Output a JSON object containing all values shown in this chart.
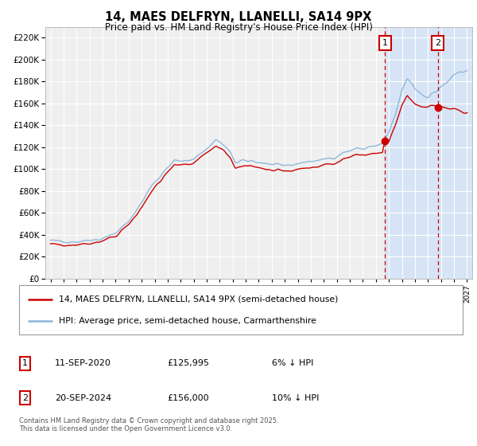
{
  "title": "14, MAES DELFRYN, LLANELLI, SA14 9PX",
  "subtitle": "Price paid vs. HM Land Registry's House Price Index (HPI)",
  "ylim": [
    0,
    230000
  ],
  "yticks": [
    0,
    20000,
    40000,
    60000,
    80000,
    100000,
    120000,
    140000,
    160000,
    180000,
    200000,
    220000
  ],
  "xlim_start": 1994.6,
  "xlim_end": 2027.4,
  "hpi_color": "#8ab4d8",
  "price_color": "#cc0000",
  "plot_bg_color": "#efefef",
  "shade_color": "#d6e4f5",
  "grid_color": "#ffffff",
  "marker1_date": 2020.7,
  "marker2_date": 2024.75,
  "marker1_value": 125995,
  "marker2_value": 156000,
  "marker1_label": "1",
  "marker2_label": "2",
  "legend_line1": "14, MAES DELFRYN, LLANELLI, SA14 9PX (semi-detached house)",
  "legend_line2": "HPI: Average price, semi-detached house, Carmarthenshire",
  "table_row1": [
    "1",
    "11-SEP-2020",
    "£125,995",
    "6% ↓ HPI"
  ],
  "table_row2": [
    "2",
    "20-SEP-2024",
    "£156,000",
    "10% ↓ HPI"
  ],
  "footer": "Contains HM Land Registry data © Crown copyright and database right 2025.\nThis data is licensed under the Open Government Licence v3.0.",
  "hpi_anchors": [
    [
      1995.0,
      34000
    ],
    [
      1996.0,
      34500
    ],
    [
      1997.0,
      34000
    ],
    [
      1998.0,
      35000
    ],
    [
      1999.0,
      37000
    ],
    [
      2000.0,
      42000
    ],
    [
      2001.0,
      52000
    ],
    [
      2002.0,
      70000
    ],
    [
      2003.0,
      89000
    ],
    [
      2004.0,
      101000
    ],
    [
      2004.5,
      108000
    ],
    [
      2005.0,
      107000
    ],
    [
      2005.5,
      108000
    ],
    [
      2006.0,
      110000
    ],
    [
      2007.0,
      119000
    ],
    [
      2007.7,
      127000
    ],
    [
      2008.3,
      122000
    ],
    [
      2008.8,
      115000
    ],
    [
      2009.2,
      106000
    ],
    [
      2009.8,
      107000
    ],
    [
      2010.3,
      108000
    ],
    [
      2010.8,
      107000
    ],
    [
      2011.5,
      105000
    ],
    [
      2012.0,
      104000
    ],
    [
      2012.5,
      103000
    ],
    [
      2013.0,
      103000
    ],
    [
      2014.0,
      105000
    ],
    [
      2015.0,
      107000
    ],
    [
      2016.0,
      109000
    ],
    [
      2017.0,
      112000
    ],
    [
      2017.5,
      115000
    ],
    [
      2018.0,
      117000
    ],
    [
      2018.5,
      119000
    ],
    [
      2019.0,
      119000
    ],
    [
      2019.5,
      120000
    ],
    [
      2020.0,
      121000
    ],
    [
      2020.5,
      123000
    ],
    [
      2021.0,
      133000
    ],
    [
      2021.5,
      150000
    ],
    [
      2022.0,
      172000
    ],
    [
      2022.4,
      182000
    ],
    [
      2022.8,
      178000
    ],
    [
      2023.0,
      174000
    ],
    [
      2023.5,
      169000
    ],
    [
      2024.0,
      166000
    ],
    [
      2024.5,
      170000
    ],
    [
      2025.0,
      175000
    ],
    [
      2025.5,
      180000
    ],
    [
      2026.0,
      185000
    ],
    [
      2026.5,
      188000
    ],
    [
      2027.0,
      191000
    ]
  ],
  "pp_anchors": [
    [
      1995.0,
      31000
    ],
    [
      1996.0,
      31000
    ],
    [
      1997.0,
      31500
    ],
    [
      1998.0,
      32500
    ],
    [
      1999.0,
      34500
    ],
    [
      2000.0,
      39000
    ],
    [
      2001.0,
      49000
    ],
    [
      2002.0,
      65000
    ],
    [
      2003.0,
      84000
    ],
    [
      2004.0,
      97000
    ],
    [
      2004.5,
      103000
    ],
    [
      2005.0,
      103000
    ],
    [
      2005.5,
      104000
    ],
    [
      2006.0,
      106000
    ],
    [
      2007.0,
      115000
    ],
    [
      2007.7,
      121000
    ],
    [
      2008.3,
      117000
    ],
    [
      2008.8,
      110000
    ],
    [
      2009.2,
      101000
    ],
    [
      2009.8,
      102000
    ],
    [
      2010.3,
      103000
    ],
    [
      2010.8,
      102000
    ],
    [
      2011.5,
      100000
    ],
    [
      2012.0,
      99000
    ],
    [
      2012.5,
      98000
    ],
    [
      2013.0,
      98000
    ],
    [
      2014.0,
      100000
    ],
    [
      2015.0,
      101000
    ],
    [
      2016.0,
      103000
    ],
    [
      2017.0,
      107000
    ],
    [
      2017.5,
      109000
    ],
    [
      2018.0,
      111000
    ],
    [
      2018.5,
      113000
    ],
    [
      2019.0,
      113000
    ],
    [
      2019.5,
      114000
    ],
    [
      2020.0,
      114000
    ],
    [
      2020.5,
      115000
    ],
    [
      2020.7,
      126000
    ],
    [
      2021.0,
      124000
    ],
    [
      2021.5,
      140000
    ],
    [
      2022.0,
      158000
    ],
    [
      2022.4,
      167000
    ],
    [
      2022.8,
      162000
    ],
    [
      2023.0,
      160000
    ],
    [
      2023.5,
      157000
    ],
    [
      2024.0,
      157000
    ],
    [
      2024.5,
      158000
    ],
    [
      2024.75,
      156000
    ],
    [
      2025.0,
      156000
    ],
    [
      2025.5,
      155000
    ],
    [
      2026.0,
      154000
    ],
    [
      2026.5,
      153000
    ],
    [
      2027.0,
      153000
    ]
  ]
}
